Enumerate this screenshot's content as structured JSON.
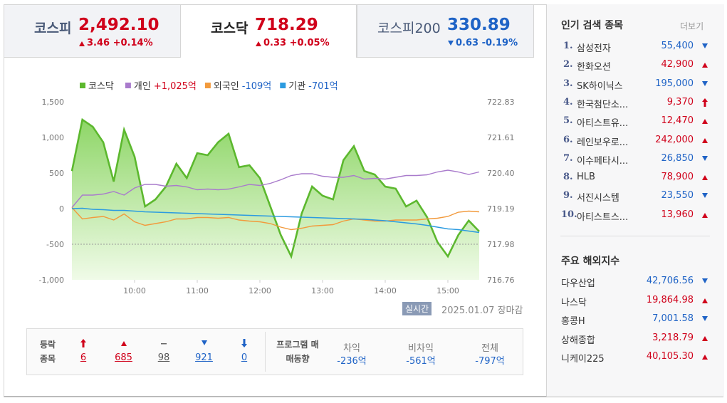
{
  "tabs": [
    {
      "name": "코스피",
      "value": "2,492.10",
      "change": "3.46 +0.14%",
      "dir": "up"
    },
    {
      "name": "코스닥",
      "value": "718.29",
      "change": "0.33 +0.05%",
      "dir": "up",
      "selected": true
    },
    {
      "name": "코스피200",
      "value": "330.89",
      "change": "0.63 -0.19%",
      "dir": "down"
    }
  ],
  "chart_data": {
    "type": "line",
    "x": [
      540,
      550,
      560,
      570,
      580,
      590,
      600,
      610,
      620,
      630,
      640,
      650,
      660,
      670,
      680,
      690,
      700,
      710,
      720,
      730,
      740,
      750,
      760,
      770,
      780,
      790,
      800,
      810,
      820,
      830,
      840,
      850,
      860,
      870,
      880,
      890,
      900,
      910,
      920,
      930
    ],
    "xlim": [
      540,
      930
    ],
    "xticks": [
      {
        "value": 600,
        "label": "10:00"
      },
      {
        "value": 660,
        "label": "11:00"
      },
      {
        "value": 720,
        "label": "12:00"
      },
      {
        "value": 780,
        "label": "13:00"
      },
      {
        "value": 840,
        "label": "14:00"
      },
      {
        "value": 900,
        "label": "15:00"
      }
    ],
    "ylim": [
      -1000,
      1500
    ],
    "yticks": [
      {
        "value": 1500,
        "label": "1,500"
      },
      {
        "value": 1000,
        "label": "1,000"
      },
      500,
      0,
      -500,
      {
        "value": -1000,
        "label": "-1,000"
      }
    ],
    "y2lim": [
      716.76,
      722.83
    ],
    "y2ticks": [
      722.83,
      721.61,
      {
        "value": 720.4,
        "label": "720.40"
      },
      719.19,
      717.98,
      716.76
    ],
    "reference_line": -500,
    "series": [
      {
        "name": "코스닥",
        "color": "#5cb82e",
        "axis": "y2",
        "area": true,
        "values": [
          720.47,
          722.22,
          721.98,
          721.45,
          720.11,
          721.88,
          720.96,
          719.26,
          719.5,
          719.94,
          720.72,
          720.23,
          721.08,
          721.01,
          721.45,
          721.74,
          720.6,
          720.67,
          720.23,
          719.26,
          718.29,
          717.56,
          719.02,
          719.94,
          719.63,
          719.5,
          720.84,
          721.32,
          720.47,
          720.35,
          719.94,
          719.87,
          719.26,
          719.46,
          718.9,
          718.05,
          717.56,
          718.29,
          718.78,
          718.41
        ]
      },
      {
        "name": "개인",
        "net_label": "+1,025억",
        "net_dir": "up",
        "color": "#a97bcc",
        "values": [
          15,
          190,
          190,
          205,
          240,
          190,
          290,
          340,
          340,
          315,
          325,
          305,
          265,
          275,
          265,
          275,
          305,
          340,
          325,
          355,
          405,
          465,
          490,
          490,
          455,
          440,
          440,
          465,
          415,
          425,
          415,
          440,
          465,
          465,
          475,
          515,
          540,
          515,
          480,
          515
        ]
      },
      {
        "name": "외국인",
        "net_label": "-109억",
        "net_dir": "down",
        "color": "#f29a3c",
        "values": [
          15,
          -145,
          -125,
          -110,
          -160,
          -75,
          -185,
          -235,
          -210,
          -185,
          -145,
          -145,
          -125,
          -125,
          -135,
          -125,
          -160,
          -175,
          -185,
          -210,
          -260,
          -295,
          -275,
          -245,
          -235,
          -225,
          -175,
          -145,
          -160,
          -175,
          -175,
          -160,
          -160,
          -160,
          -145,
          -135,
          -110,
          -50,
          -35,
          -45
        ]
      },
      {
        "name": "기관",
        "net_label": "-701억",
        "net_dir": "down",
        "color": "#2b9be0",
        "values": [
          0,
          5,
          -10,
          -15,
          -25,
          -25,
          -35,
          -45,
          -50,
          -55,
          -60,
          -65,
          -70,
          -75,
          -80,
          -85,
          -90,
          -95,
          -100,
          -105,
          -110,
          -115,
          -120,
          -125,
          -130,
          -135,
          -140,
          -145,
          -150,
          -160,
          -170,
          -185,
          -200,
          -215,
          -235,
          -260,
          -285,
          -295,
          -315,
          -335
        ]
      }
    ]
  },
  "status": {
    "badge": "실시간",
    "text": "2025.01.07 장마감"
  },
  "breadth": {
    "label": "등락 종목",
    "items": [
      {
        "dir": "limit_up",
        "value": "6"
      },
      {
        "dir": "up",
        "value": "685"
      },
      {
        "dir": "flat",
        "value": "98"
      },
      {
        "dir": "down",
        "value": "921"
      },
      {
        "dir": "limit_down",
        "value": "0"
      }
    ]
  },
  "program": {
    "label": "프로그램 매매동향",
    "items": [
      {
        "name": "차익",
        "value": "-236억"
      },
      {
        "name": "비차익",
        "value": "-561억"
      },
      {
        "name": "전체",
        "value": "-797억"
      }
    ]
  },
  "popular": {
    "title": "인기 검색 종목",
    "more": "더보기",
    "rows": [
      {
        "rank": "1.",
        "name": "삼성전자",
        "price": "55,400",
        "dir": "down"
      },
      {
        "rank": "2.",
        "name": "한화오션",
        "price": "42,900",
        "dir": "up"
      },
      {
        "rank": "3.",
        "name": "SK하이닉스",
        "price": "195,000",
        "dir": "down"
      },
      {
        "rank": "4.",
        "name": "한국첨단소...",
        "price": "9,370",
        "dir": "limit_up"
      },
      {
        "rank": "5.",
        "name": "아티스트유...",
        "price": "12,470",
        "dir": "up"
      },
      {
        "rank": "6.",
        "name": "레인보우로...",
        "price": "242,000",
        "dir": "up"
      },
      {
        "rank": "7.",
        "name": "이수페타시...",
        "price": "26,850",
        "dir": "down"
      },
      {
        "rank": "8.",
        "name": "HLB",
        "price": "78,900",
        "dir": "up"
      },
      {
        "rank": "9.",
        "name": "서진시스템",
        "price": "23,550",
        "dir": "down"
      },
      {
        "rank": "10.",
        "name": "아티스트스...",
        "price": "13,960",
        "dir": "up"
      }
    ]
  },
  "overseas": {
    "title": "주요 해외지수",
    "rows": [
      {
        "name": "다우산업",
        "value": "42,706.56",
        "dir": "down"
      },
      {
        "name": "나스닥",
        "value": "19,864.98",
        "dir": "up"
      },
      {
        "name": "홍콩H",
        "value": "7,001.58",
        "dir": "down"
      },
      {
        "name": "상해종합",
        "value": "3,218.79",
        "dir": "up"
      },
      {
        "name": "니케이225",
        "value": "40,105.30",
        "dir": "up"
      }
    ]
  }
}
